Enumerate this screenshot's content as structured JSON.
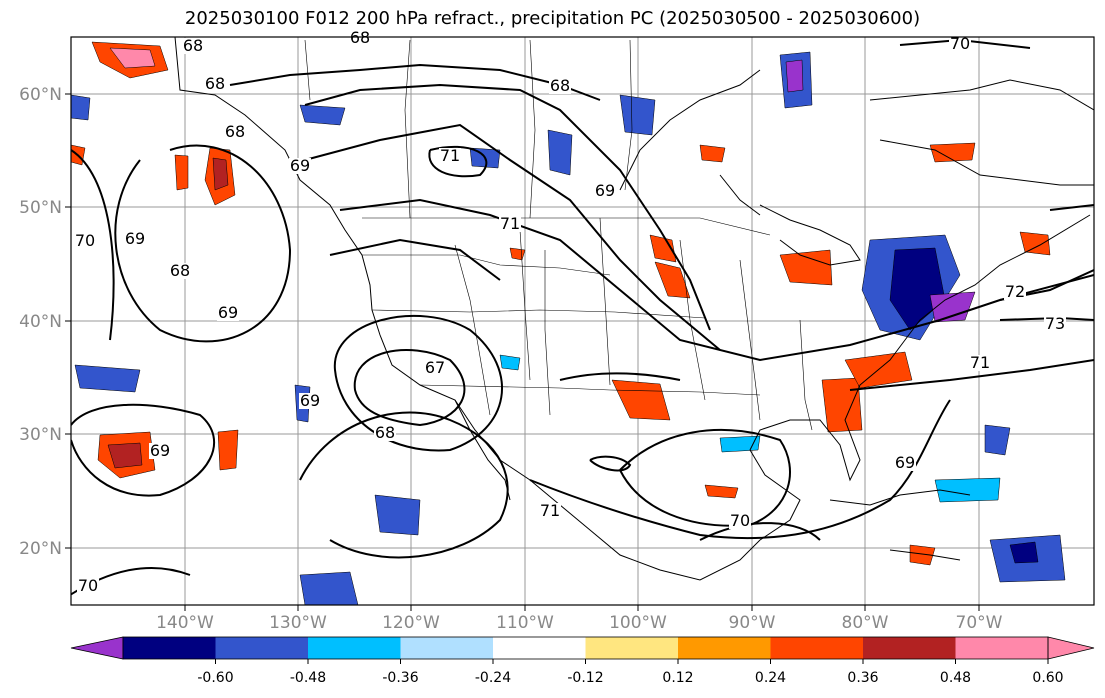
{
  "title": "2025030100 F012 200 hPa refract., precipitation PC (2025030500 - 2025030600)",
  "lat_labels": [
    "60°N",
    "50°N",
    "40°N",
    "30°N",
    "20°N"
  ],
  "lon_labels": [
    "140°W",
    "130°W",
    "120°W",
    "110°W",
    "100°W",
    "90°W",
    "80°W",
    "70°W"
  ],
  "contour_labels": [
    "68",
    "68",
    "68",
    "68",
    "68",
    "68",
    "68",
    "69",
    "69",
    "69",
    "69",
    "69",
    "70",
    "70",
    "70",
    "70",
    "71",
    "71",
    "71",
    "71",
    "72",
    "73",
    "67",
    "69",
    "69"
  ],
  "colorbar": {
    "tick_labels": [
      "-0.60",
      "-0.48",
      "-0.36",
      "-0.24",
      "-0.12",
      "0.12",
      "0.24",
      "0.36",
      "0.48",
      "0.60"
    ],
    "colors": [
      "#9933cc",
      "#000080",
      "#3355cc",
      "#00bfff",
      "#b0e0ff",
      "#ffffff",
      "#ffe680",
      "#ff9900",
      "#ff4500",
      "#b22222",
      "#ff88aa",
      "#ff88aa"
    ]
  },
  "colors": {
    "contour": "#000000",
    "grid": "#999999",
    "tick_label": "#888888"
  }
}
